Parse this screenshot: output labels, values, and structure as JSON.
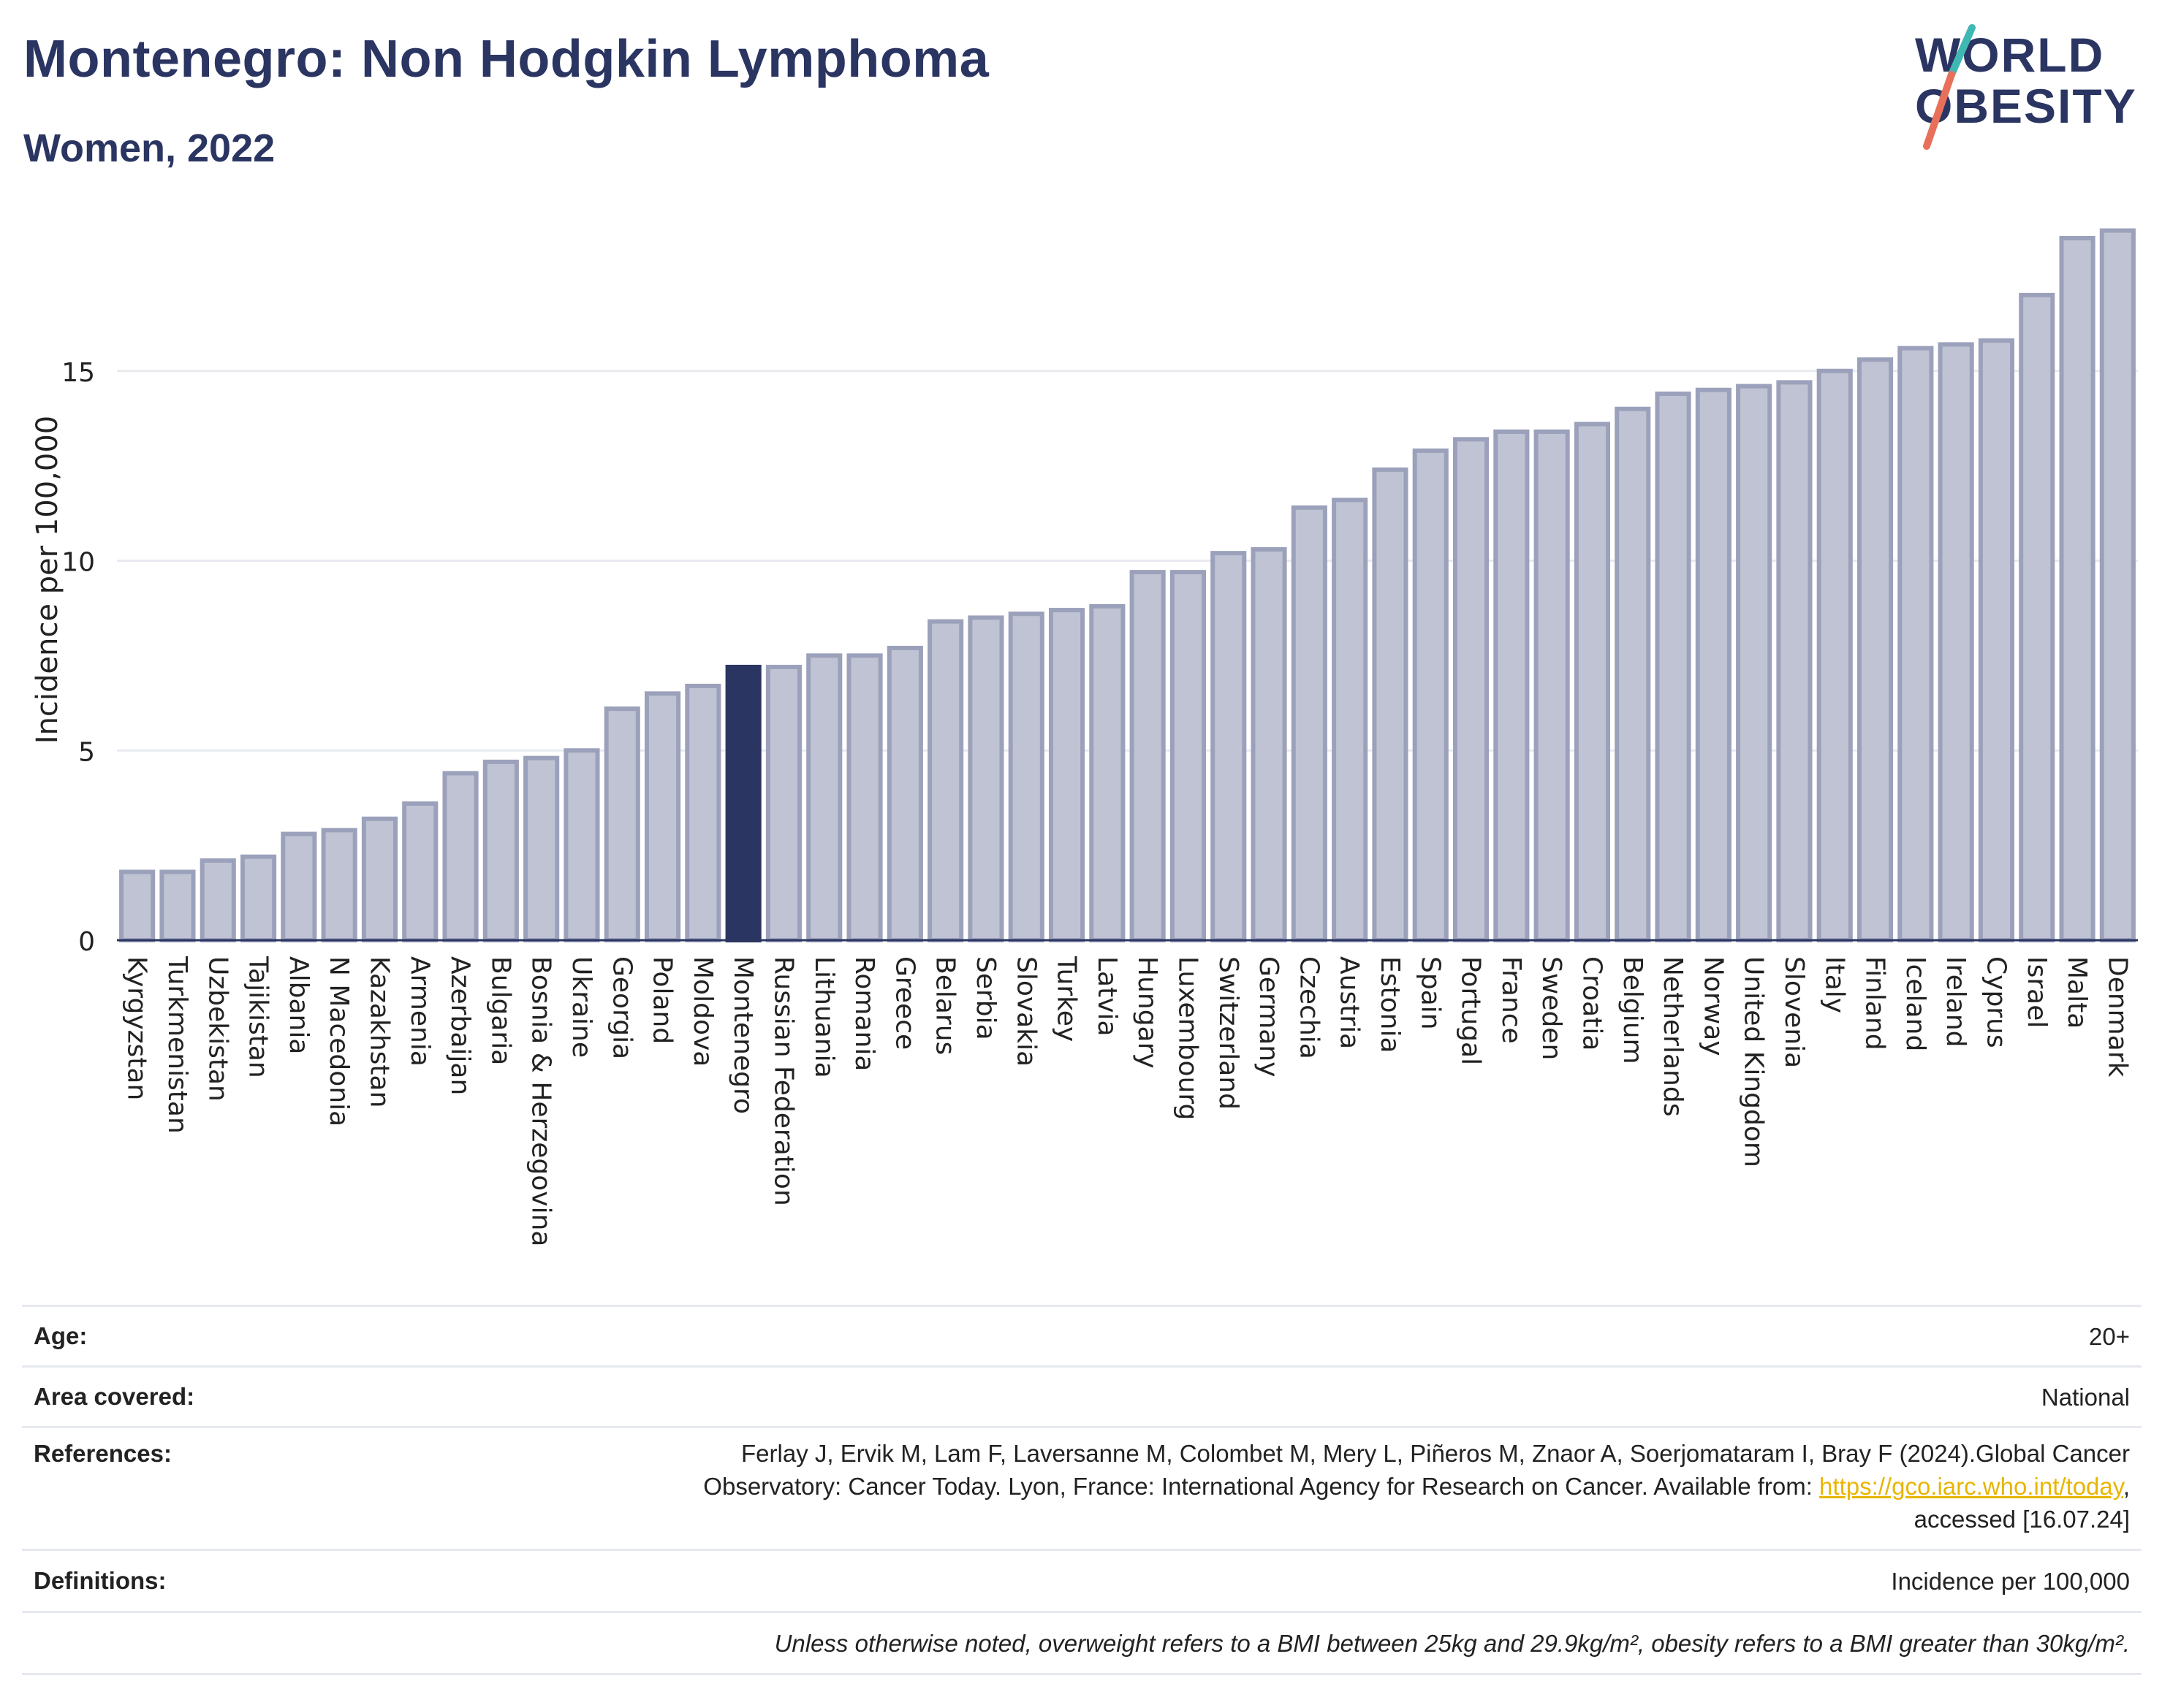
{
  "header": {
    "title": "Montenegro: Non Hodgkin Lymphoma",
    "subtitle": "Women, 2022",
    "logo_line1": "WORLD",
    "logo_line2": "OBESITY"
  },
  "colors": {
    "title": "#2b3562",
    "bar": "#bfc3d3",
    "bar_stroke": "#9ca1bb",
    "highlight": "#2b3562",
    "grid": "#e8eaf0",
    "logo_teal": "#3fb8b3",
    "logo_coral": "#e8705a"
  },
  "chart_data": {
    "type": "bar",
    "ylabel": "Incidence per 100,000",
    "ylim": [
      0,
      19
    ],
    "yticks": [
      0,
      5,
      10,
      15
    ],
    "grid": true,
    "highlight": "Montenegro",
    "categories": [
      "Kyrgyzstan",
      "Turkmenistan",
      "Uzbekistan",
      "Tajikistan",
      "Albania",
      "N Macedonia",
      "Kazakhstan",
      "Armenia",
      "Azerbaijan",
      "Bulgaria",
      "Bosnia & Herzegovina",
      "Ukraine",
      "Georgia",
      "Poland",
      "Moldova",
      "Montenegro",
      "Russian Federation",
      "Lithuania",
      "Romania",
      "Greece",
      "Belarus",
      "Serbia",
      "Slovakia",
      "Turkey",
      "Latvia",
      "Hungary",
      "Luxembourg",
      "Switzerland",
      "Germany",
      "Czechia",
      "Austria",
      "Estonia",
      "Spain",
      "Portugal",
      "France",
      "Sweden",
      "Croatia",
      "Belgium",
      "Netherlands",
      "Norway",
      "United Kingdom",
      "Slovenia",
      "Italy",
      "Finland",
      "Iceland",
      "Ireland",
      "Cyprus",
      "Israel",
      "Malta",
      "Denmark"
    ],
    "values": [
      1.8,
      1.8,
      2.1,
      2.2,
      2.8,
      2.9,
      3.2,
      3.6,
      4.4,
      4.7,
      4.8,
      5.0,
      6.1,
      6.5,
      6.7,
      7.2,
      7.2,
      7.5,
      7.5,
      7.7,
      8.4,
      8.5,
      8.6,
      8.7,
      8.8,
      9.7,
      9.7,
      10.2,
      10.3,
      11.4,
      11.6,
      12.4,
      12.9,
      13.2,
      13.4,
      13.4,
      13.6,
      14.0,
      14.4,
      14.5,
      14.6,
      14.7,
      15.0,
      15.3,
      15.6,
      15.7,
      15.8,
      17.0,
      18.5,
      18.7
    ]
  },
  "meta": {
    "age_label": "Age:",
    "age_value": "20+",
    "area_label": "Area covered:",
    "area_value": "National",
    "references_label": "References:",
    "references_line1": "Ferlay J, Ervik M, Lam F, Laversanne M, Colombet M, Mery L, Piñeros M, Znaor A, Soerjomataram I, Bray F (2024).Global Cancer",
    "references_line2": "Observatory: Cancer Today. Lyon, France: International Agency for Research on Cancer. Available from: ",
    "references_link": "https://gco.iarc.who.int/today",
    "references_line2_end": ",",
    "references_line3": "accessed [16.07.24]",
    "definitions_label": "Definitions:",
    "definitions_value": "Incidence per 100,000",
    "note": "Unless otherwise noted, overweight refers to a BMI between 25kg and 29.9kg/m², obesity refers to a BMI greater than 30kg/m²."
  }
}
